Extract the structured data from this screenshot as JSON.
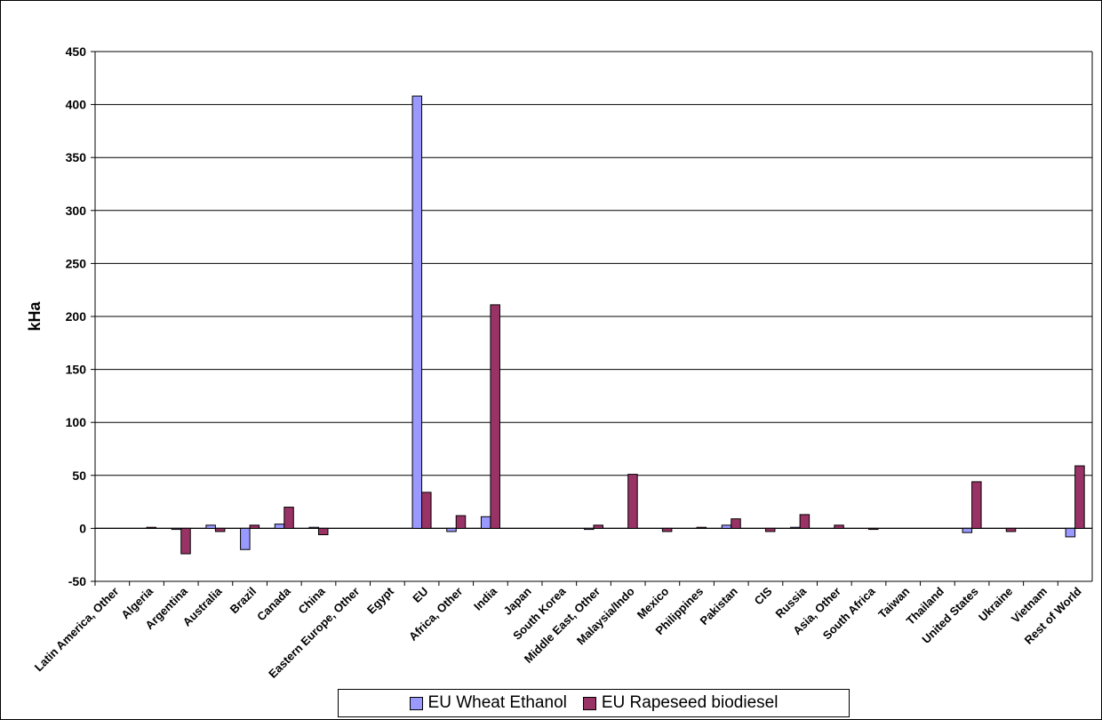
{
  "chart_data": {
    "type": "bar",
    "title": "",
    "xlabel": "",
    "ylabel": "kHa",
    "ylim": [
      -50,
      450
    ],
    "yticks": [
      "450",
      "400",
      "350",
      "300",
      "250",
      "200",
      "150",
      "100",
      "50",
      "0",
      "-50"
    ],
    "grid": true,
    "legend_position": "bottom",
    "categories": [
      "Latin America, Other",
      "Algeria",
      "Argentina",
      "Australia",
      "Brazil",
      "Canada",
      "China",
      "Eastern Europe, Other",
      "Egypt",
      "EU",
      "Africa, Other",
      "India",
      "Japan",
      "South Korea",
      "Middle East, Other",
      "Malaysia/Indo",
      "Mexico",
      "Philippines",
      "Pakistan",
      "CIS",
      "Russia",
      "Asia, Other",
      "South Africa",
      "Taiwan",
      "Thailand",
      "United States",
      "Ukraine",
      "Vietnam",
      "Rest of World"
    ],
    "series": [
      {
        "name": "EU Wheat Ethanol",
        "color": "#9999ff",
        "values": [
          0,
          0,
          -1,
          3,
          -20,
          4,
          1,
          0,
          0,
          408,
          -3,
          11,
          0,
          0,
          -1,
          0,
          0,
          0,
          3,
          0,
          1,
          0,
          0,
          0,
          0,
          -4,
          0,
          0,
          -8
        ]
      },
      {
        "name": "EU Rapeseed biodiesel",
        "color": "#993366",
        "values": [
          0,
          1,
          -24,
          -3,
          3,
          20,
          -6,
          0,
          0,
          34,
          12,
          211,
          0,
          0,
          3,
          51,
          -3,
          1,
          9,
          -3,
          13,
          3,
          -1,
          0,
          0,
          44,
          -3,
          0,
          59
        ]
      }
    ]
  },
  "colors": {
    "negative_tick": "#ff0000",
    "gridline": "#000000"
  }
}
